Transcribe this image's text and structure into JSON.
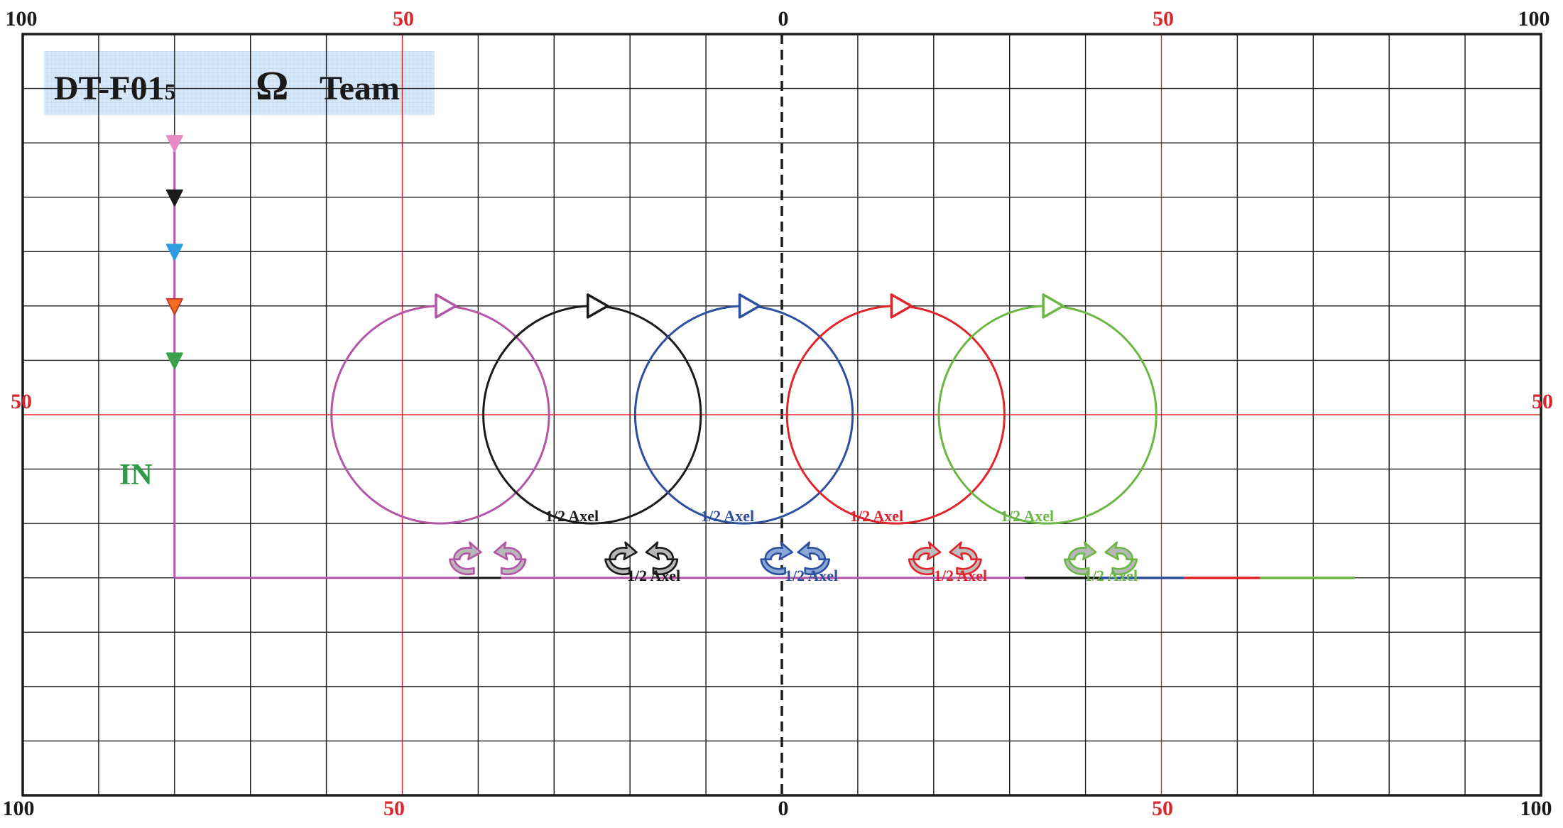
{
  "title_box": {
    "code": "DT-F01",
    "code_subscript": "5",
    "omega": "Ω",
    "team": "Team"
  },
  "axis_labels": {
    "top": [
      "100",
      "50",
      "0",
      "50",
      "100"
    ],
    "bottom": [
      "100",
      "50",
      "0",
      "50",
      "100"
    ],
    "left_mid": "50",
    "right_mid": "50"
  },
  "entry_label": "IN",
  "skaters": [
    {
      "color": "#b455a7",
      "fill": "#b7b7b7"
    },
    {
      "color": "#1a1a1a",
      "fill": "#b7b7b7"
    },
    {
      "color": "#2c4fa0",
      "fill": "#8aa7d6"
    },
    {
      "color": "#e0242b",
      "fill": "#bdbdbd"
    },
    {
      "color": "#6ab744",
      "fill": "#b7b7b7"
    }
  ],
  "entry_markers": [
    {
      "color": "#e88ac8"
    },
    {
      "color": "#1a1a1a"
    },
    {
      "color": "#2f9de0"
    },
    {
      "color": "#f46b22"
    },
    {
      "color": "#3aa14b"
    }
  ],
  "jump_labels": [
    {
      "text": "1/2  Axel",
      "color": "#1a1a1a"
    },
    {
      "text": "1/2  Axel",
      "color": "#1a1a1a"
    },
    {
      "text": "1/2  Axel",
      "color": "#2c4fa0"
    },
    {
      "text": "1/2  Axel",
      "color": "#2c4fa0"
    },
    {
      "text": "1/2  Axel",
      "color": "#e0242b"
    },
    {
      "text": "1/2  Axel",
      "color": "#e0242b"
    },
    {
      "text": "1/2  Axel",
      "color": "#6ab744"
    },
    {
      "text": "1/2  Axel",
      "color": "#6ab744"
    }
  ],
  "colors": {
    "grid": "#1a1a1a",
    "axis_red": "#e0242b",
    "label_red": "#d9272e",
    "label_black": "#1a1a1a",
    "title_box_bg": "#d6e7f7",
    "in_label": "#2e9a4a"
  }
}
